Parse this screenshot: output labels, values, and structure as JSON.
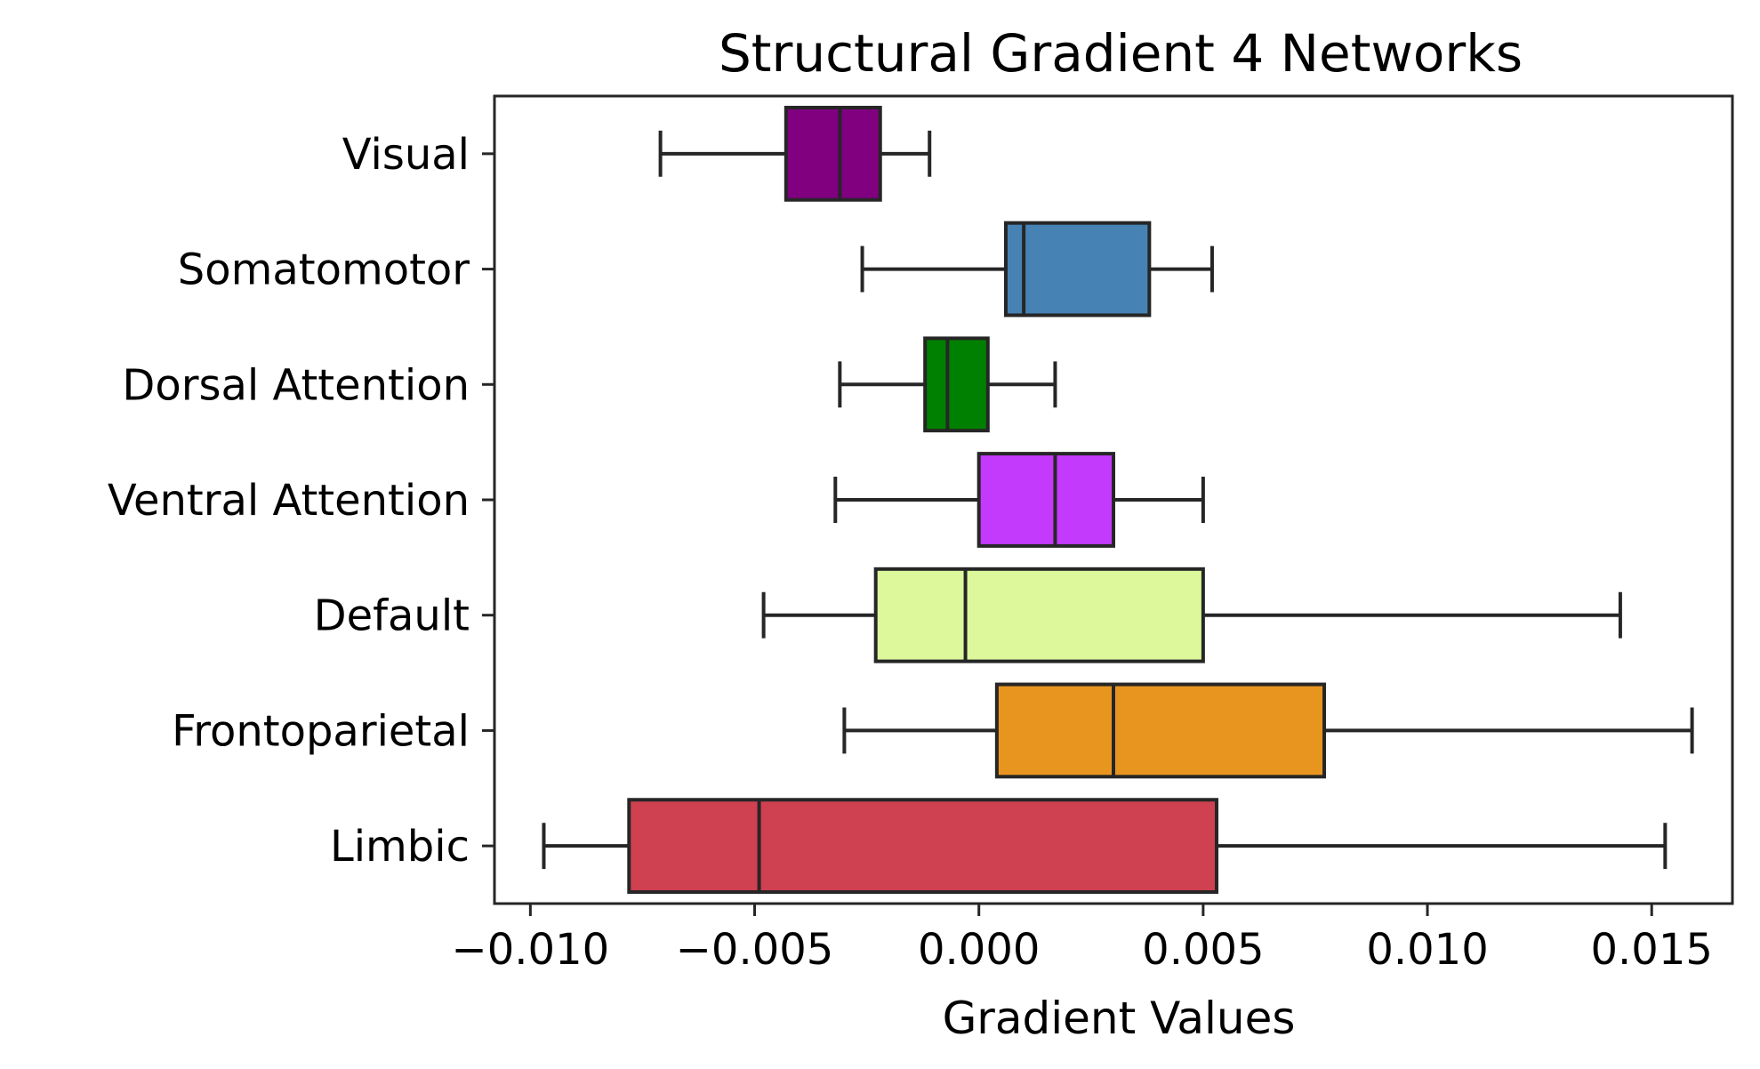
{
  "chart_data": {
    "type": "boxplot",
    "orientation": "horizontal",
    "title": "Structural Gradient 4 Networks",
    "xlabel": "Gradient Values",
    "ylabel": "",
    "xlim": [
      -0.0108,
      0.0168
    ],
    "xticks": [
      -0.01,
      -0.005,
      0.0,
      0.005,
      0.01,
      0.015
    ],
    "xtick_labels": [
      "−0.010",
      "−0.005",
      "0.000",
      "0.005",
      "0.010",
      "0.015"
    ],
    "grid": false,
    "categories": [
      "Visual",
      "Somatomotor",
      "Dorsal Attention",
      "Ventral Attention",
      "Default",
      "Frontoparietal",
      "Limbic"
    ],
    "boxes": [
      {
        "category": "Visual",
        "whisker_low": -0.0071,
        "q1": -0.0043,
        "median": -0.0031,
        "q3": -0.0022,
        "whisker_high": -0.0011,
        "color": "#800080"
      },
      {
        "category": "Somatomotor",
        "whisker_low": -0.0026,
        "q1": 0.0006,
        "median": 0.001,
        "q3": 0.0038,
        "whisker_high": 0.0052,
        "color": "#4682B4"
      },
      {
        "category": "Dorsal Attention",
        "whisker_low": -0.0031,
        "q1": -0.0012,
        "median": -0.0007,
        "q3": 0.0002,
        "whisker_high": 0.0017,
        "color": "#008000"
      },
      {
        "category": "Ventral Attention",
        "whisker_low": -0.0032,
        "q1": 0.0,
        "median": 0.0017,
        "q3": 0.003,
        "whisker_high": 0.005,
        "color": "#C43AFC"
      },
      {
        "category": "Default",
        "whisker_low": -0.0048,
        "q1": -0.0023,
        "median": -0.0003,
        "q3": 0.005,
        "whisker_high": 0.0143,
        "color": "#DCF89B"
      },
      {
        "category": "Frontoparietal",
        "whisker_low": -0.003,
        "q1": 0.0004,
        "median": 0.003,
        "q3": 0.0077,
        "whisker_high": 0.0159,
        "color": "#E89520"
      },
      {
        "category": "Limbic",
        "whisker_low": -0.0097,
        "q1": -0.0078,
        "median": -0.0049,
        "q3": 0.0053,
        "whisker_high": 0.0153,
        "color": "#CF4050"
      }
    ]
  }
}
